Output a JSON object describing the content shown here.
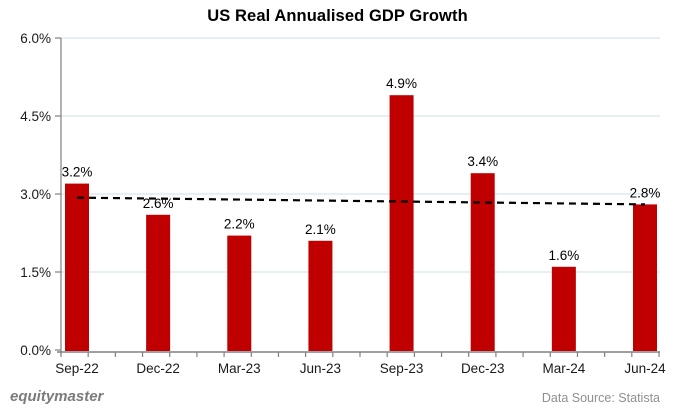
{
  "title": "US Real Annualised GDP Growth",
  "footer": {
    "brand": "equitymaster",
    "source": "Data Source: Statista"
  },
  "chart_data": {
    "type": "bar",
    "title": "US Real Annualised GDP Growth",
    "categories": [
      "Sep-22",
      "Dec-22",
      "Mar-23",
      "Jun-23",
      "Sep-23",
      "Dec-23",
      "Mar-24",
      "Jun-24"
    ],
    "values": [
      3.2,
      2.6,
      2.2,
      2.1,
      4.9,
      3.4,
      1.6,
      2.8
    ],
    "data_labels": [
      "3.2%",
      "2.6%",
      "2.2%",
      "2.1%",
      "4.9%",
      "3.4%",
      "1.6%",
      "2.8%"
    ],
    "xlabel": "",
    "ylabel": "",
    "ylim": [
      0,
      6
    ],
    "yticks": [
      0.0,
      1.5,
      3.0,
      4.5,
      6.0
    ],
    "ytick_labels": [
      "0.0%",
      "1.5%",
      "3.0%",
      "4.5%",
      "6.0%"
    ],
    "grid": true,
    "legend": "none",
    "trendline": {
      "style": "dashed",
      "color": "#000000",
      "start_value": 2.93,
      "end_value": 2.8
    }
  },
  "colors": {
    "bar": "#C00000",
    "gridline": "#D8E4F0",
    "axis": "#808080",
    "trendline": "#000000",
    "title_text": "#000000",
    "tick_text": "#1a1a1a",
    "label_text": "#000000",
    "brand_text": "#7b7b7b",
    "source_text": "#8f8f8f"
  }
}
